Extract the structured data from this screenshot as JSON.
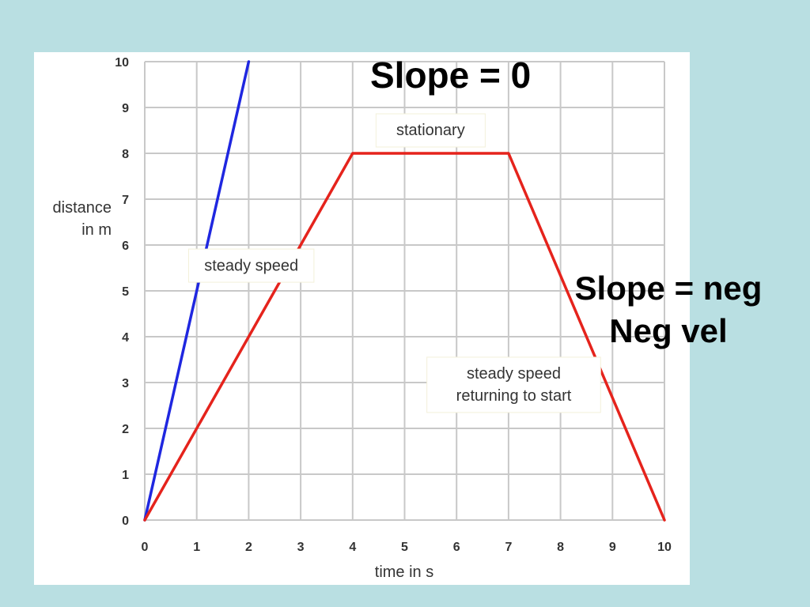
{
  "colors": {
    "background": "#b9dfe2",
    "plot_background": "#ffffff",
    "grid": "#c8c8c8",
    "blue_series": "#1f27e0",
    "red_series": "#e5231c",
    "text": "#333333"
  },
  "overlay": {
    "top_label": "Slope = 0",
    "right_label_line1": "Slope = neg",
    "right_label_line2": "Neg vel"
  },
  "chart_data": {
    "type": "line",
    "title": "",
    "xlabel": "time in s",
    "ylabel_line1": "distance",
    "ylabel_line2": "in m",
    "xlim": [
      0,
      10
    ],
    "ylim": [
      0,
      10
    ],
    "x_ticks": [
      "0",
      "1",
      "2",
      "3",
      "4",
      "5",
      "6",
      "7",
      "8",
      "9",
      "10"
    ],
    "y_ticks": [
      "0",
      "1",
      "2",
      "3",
      "4",
      "5",
      "6",
      "7",
      "8",
      "9",
      "10"
    ],
    "grid": true,
    "series": [
      {
        "color": "#1f27e0",
        "points": [
          [
            0,
            0
          ],
          [
            2,
            10
          ]
        ]
      },
      {
        "color": "#e5231c",
        "points": [
          [
            0,
            0
          ],
          [
            4,
            8
          ],
          [
            7,
            8
          ],
          [
            10,
            0
          ]
        ]
      }
    ],
    "annotations": [
      {
        "lines": [
          "stationary"
        ],
        "x": 5.5,
        "y": 8.5
      },
      {
        "lines": [
          "steady speed"
        ],
        "x": 2.05,
        "y": 5.55
      },
      {
        "lines": [
          "steady speed",
          "returning to start"
        ],
        "x": 7.1,
        "y": 2.95
      }
    ]
  }
}
